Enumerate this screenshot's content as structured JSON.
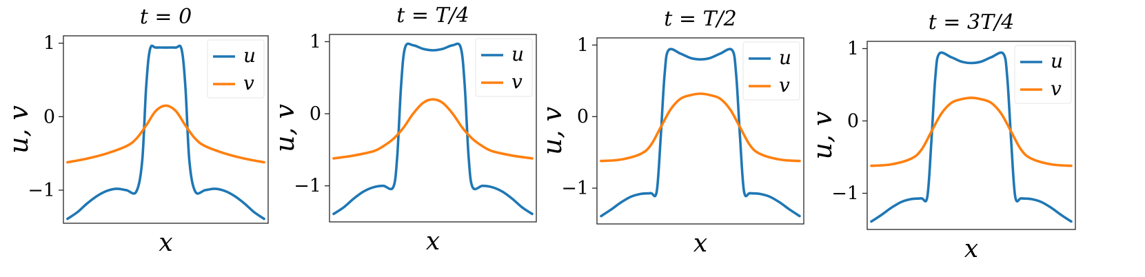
{
  "chart_data": [
    {
      "type": "line",
      "title": "t = 0",
      "xlabel": "x",
      "ylabel": "u, v",
      "ylim": [
        -1.45,
        1.1
      ],
      "yticks": [
        {
          "value": 1,
          "label": "1"
        },
        {
          "value": 0,
          "label": "0"
        },
        {
          "value": -1,
          "label": "−1"
        }
      ],
      "legend": "top-right",
      "series": [
        {
          "name": "u",
          "color": "#1f77b4",
          "x": [
            0,
            0.05,
            0.1,
            0.15,
            0.2,
            0.25,
            0.3,
            0.35,
            0.38,
            0.4,
            0.42,
            0.45,
            0.5,
            0.55,
            0.58,
            0.6,
            0.62,
            0.65,
            0.7,
            0.75,
            0.8,
            0.85,
            0.9,
            0.95,
            1
          ],
          "y": [
            -1.39,
            -1.3,
            -1.18,
            -1.08,
            -1.01,
            -0.98,
            -1.0,
            -1.02,
            -0.6,
            0.4,
            0.92,
            0.94,
            0.94,
            0.94,
            0.92,
            0.4,
            -0.6,
            -1.02,
            -1.0,
            -0.98,
            -1.01,
            -1.08,
            -1.18,
            -1.3,
            -1.39
          ]
        },
        {
          "name": "v",
          "color": "#ff7f0e",
          "x": [
            0,
            0.1,
            0.2,
            0.3,
            0.35,
            0.4,
            0.45,
            0.5,
            0.55,
            0.6,
            0.65,
            0.7,
            0.8,
            0.9,
            1
          ],
          "y": [
            -0.62,
            -0.57,
            -0.5,
            -0.4,
            -0.3,
            -0.12,
            0.08,
            0.15,
            0.08,
            -0.12,
            -0.3,
            -0.4,
            -0.5,
            -0.57,
            -0.62
          ]
        }
      ]
    },
    {
      "type": "line",
      "title": "t = T/4",
      "xlabel": "x",
      "ylabel": "u, v",
      "ylim": [
        -1.5,
        1.1
      ],
      "yticks": [
        {
          "value": 1,
          "label": "1"
        },
        {
          "value": 0,
          "label": "0"
        },
        {
          "value": -1,
          "label": "−1"
        }
      ],
      "legend": "top-right",
      "series": [
        {
          "name": "u",
          "color": "#1f77b4",
          "x": [
            0,
            0.05,
            0.1,
            0.15,
            0.2,
            0.25,
            0.3,
            0.32,
            0.34,
            0.36,
            0.4,
            0.45,
            0.5,
            0.55,
            0.6,
            0.64,
            0.66,
            0.68,
            0.7,
            0.75,
            0.8,
            0.85,
            0.9,
            0.95,
            1
          ],
          "y": [
            -1.39,
            -1.3,
            -1.18,
            -1.08,
            -1.02,
            -1.0,
            -1.02,
            -0.6,
            0.4,
            0.92,
            0.95,
            0.9,
            0.88,
            0.9,
            0.95,
            0.92,
            0.4,
            -0.6,
            -1.02,
            -1.0,
            -1.02,
            -1.08,
            -1.18,
            -1.3,
            -1.39
          ]
        },
        {
          "name": "v",
          "color": "#ff7f0e",
          "x": [
            0,
            0.1,
            0.2,
            0.25,
            0.3,
            0.35,
            0.4,
            0.45,
            0.5,
            0.55,
            0.6,
            0.65,
            0.7,
            0.75,
            0.8,
            0.9,
            1
          ],
          "y": [
            -0.62,
            -0.58,
            -0.52,
            -0.45,
            -0.35,
            -0.2,
            0.0,
            0.15,
            0.2,
            0.15,
            0.0,
            -0.2,
            -0.35,
            -0.45,
            -0.52,
            -0.58,
            -0.62
          ]
        }
      ]
    },
    {
      "type": "line",
      "title": "t = T/2",
      "xlabel": "x",
      "ylabel": "u, v",
      "ylim": [
        -1.5,
        1.1
      ],
      "yticks": [
        {
          "value": 1,
          "label": "1"
        },
        {
          "value": 0,
          "label": "0"
        },
        {
          "value": -1,
          "label": "−1"
        }
      ],
      "legend": "top-right",
      "series": [
        {
          "name": "u",
          "color": "#1f77b4",
          "x": [
            0,
            0.05,
            0.1,
            0.15,
            0.2,
            0.25,
            0.28,
            0.3,
            0.32,
            0.34,
            0.4,
            0.45,
            0.5,
            0.55,
            0.6,
            0.66,
            0.68,
            0.7,
            0.72,
            0.75,
            0.8,
            0.85,
            0.9,
            0.95,
            1
          ],
          "y": [
            -1.39,
            -1.3,
            -1.2,
            -1.12,
            -1.08,
            -1.07,
            -1.05,
            -0.3,
            0.6,
            0.93,
            0.88,
            0.82,
            0.8,
            0.82,
            0.88,
            0.93,
            0.6,
            -0.3,
            -1.05,
            -1.07,
            -1.08,
            -1.12,
            -1.2,
            -1.3,
            -1.39
          ]
        },
        {
          "name": "v",
          "color": "#ff7f0e",
          "x": [
            0,
            0.1,
            0.2,
            0.25,
            0.3,
            0.35,
            0.4,
            0.45,
            0.5,
            0.55,
            0.6,
            0.65,
            0.7,
            0.75,
            0.8,
            0.9,
            1
          ],
          "y": [
            -0.62,
            -0.6,
            -0.52,
            -0.4,
            -0.15,
            0.1,
            0.25,
            0.3,
            0.32,
            0.3,
            0.25,
            0.1,
            -0.15,
            -0.4,
            -0.52,
            -0.6,
            -0.62
          ]
        }
      ]
    },
    {
      "type": "line",
      "title": "t = 3T/4",
      "xlabel": "x",
      "ylabel": "u, v",
      "ylim": [
        -1.5,
        1.1
      ],
      "yticks": [
        {
          "value": 1,
          "label": "1"
        },
        {
          "value": 0,
          "label": "0"
        },
        {
          "value": -1,
          "label": "−1"
        }
      ],
      "legend": "top-right",
      "series": [
        {
          "name": "u",
          "color": "#1f77b4",
          "x": [
            0,
            0.05,
            0.1,
            0.15,
            0.2,
            0.25,
            0.28,
            0.3,
            0.32,
            0.34,
            0.4,
            0.45,
            0.5,
            0.55,
            0.6,
            0.66,
            0.68,
            0.7,
            0.72,
            0.75,
            0.8,
            0.85,
            0.9,
            0.95,
            1
          ],
          "y": [
            -1.39,
            -1.3,
            -1.2,
            -1.12,
            -1.08,
            -1.07,
            -1.05,
            -0.3,
            0.6,
            0.93,
            0.88,
            0.82,
            0.8,
            0.82,
            0.88,
            0.93,
            0.6,
            -0.3,
            -1.05,
            -1.07,
            -1.08,
            -1.12,
            -1.2,
            -1.3,
            -1.39
          ]
        },
        {
          "name": "v",
          "color": "#ff7f0e",
          "x": [
            0,
            0.1,
            0.2,
            0.25,
            0.3,
            0.35,
            0.4,
            0.45,
            0.5,
            0.55,
            0.6,
            0.65,
            0.7,
            0.75,
            0.8,
            0.9,
            1
          ],
          "y": [
            -0.62,
            -0.6,
            -0.52,
            -0.4,
            -0.15,
            0.1,
            0.25,
            0.3,
            0.32,
            0.3,
            0.25,
            0.1,
            -0.15,
            -0.4,
            -0.52,
            -0.6,
            -0.62
          ]
        }
      ]
    }
  ]
}
